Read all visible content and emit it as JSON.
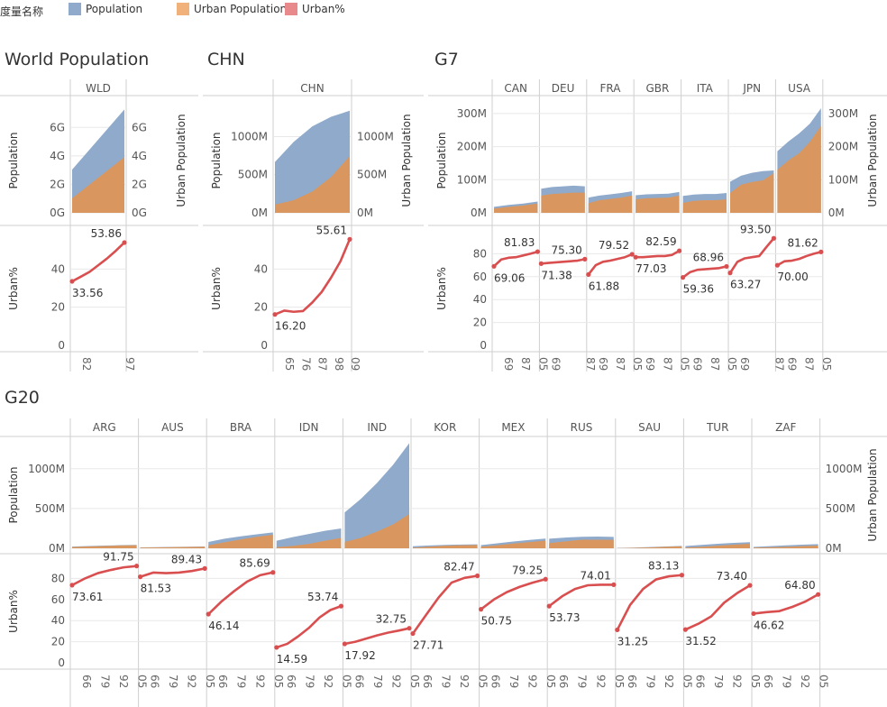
{
  "legend": {
    "title": "度量名称",
    "items": [
      {
        "label": "Population",
        "color": "#8faacb"
      },
      {
        "label": "Urban Population",
        "color": "#f0b27a"
      },
      {
        "label": "Urban%",
        "color": "#e8898c"
      }
    ]
  },
  "colors": {
    "population": "#8faacb",
    "urban_population": "#d9975f",
    "urban_line": "#d94f50",
    "grid": "#e8e8e8",
    "border": "#cfcfcf"
  },
  "chart_data": [
    {
      "section": "World Population",
      "type": "area+line",
      "axis_labels": {
        "left_top": "Population",
        "right_top": "Urban Population",
        "bottom": "Urban%"
      },
      "pop_ticks": [
        "0G",
        "2G",
        "4G",
        "6G"
      ],
      "pop_ticks_right": [
        "0G",
        "2G",
        "4G",
        "6G"
      ],
      "pop_ylim": [
        0,
        7.6
      ],
      "urban_ticks": [
        "0",
        "20",
        "40"
      ],
      "urban_ylim": [
        0,
        60
      ],
      "x_ticks": [
        "82",
        "97"
      ],
      "panels": [
        {
          "label": "WLD",
          "pop": [
            3.03,
            7.26
          ],
          "urban_pop": [
            1.02,
            3.91
          ],
          "urban": [
            33.56,
            36,
            38.5,
            42,
            45.5,
            49.5,
            53.86
          ],
          "start_label": "33.56",
          "end_label": "53.86"
        }
      ]
    },
    {
      "section": "CHN",
      "type": "area+line",
      "axis_labels": {
        "left_top": "Population",
        "right_top": "Urban Population",
        "bottom": "Urban%"
      },
      "pop_ticks": [
        "0M",
        "500M",
        "1000M"
      ],
      "pop_ticks_right": [
        "0M",
        "500M",
        "1000M"
      ],
      "pop_ylim": [
        0,
        1420
      ],
      "urban_ticks": [
        "0",
        "20",
        "40"
      ],
      "urban_ylim": [
        0,
        60
      ],
      "x_ticks": [
        "65",
        "76",
        "87",
        "98",
        "09"
      ],
      "panels": [
        {
          "label": "CHN",
          "pop": [
            667,
            930,
            1135,
            1260,
            1340
          ],
          "urban_pop": [
            108,
            165,
            280,
            470,
            745
          ],
          "urban": [
            16.2,
            18.2,
            17.6,
            18.0,
            22.5,
            28,
            35.5,
            44,
            55.61
          ],
          "start_label": "16.20",
          "end_label": "55.61"
        }
      ]
    },
    {
      "section": "G7",
      "type": "area+line",
      "axis_labels": {
        "left_top": "Population",
        "right_top": "Urban Population",
        "bottom": "Urban%"
      },
      "pop_ticks": [
        "0M",
        "100M",
        "200M",
        "300M"
      ],
      "pop_ticks_right": [
        "0M",
        "100M",
        "200M",
        "300M"
      ],
      "pop_ylim": [
        0,
        335
      ],
      "urban_ticks": [
        "0",
        "20",
        "40",
        "60",
        "80"
      ],
      "urban_ylim": [
        0,
        100
      ],
      "x_ticks": [
        "69",
        "87",
        "05"
      ],
      "panels": [
        {
          "label": "CAN",
          "x_ticks": [
            "69",
            "87",
            "05"
          ],
          "pop": [
            18,
            24,
            28,
            34
          ],
          "urban_pop": [
            13,
            18,
            22,
            28
          ],
          "urban": [
            69.06,
            75,
            76.5,
            77,
            78.5,
            80,
            81.83
          ],
          "start_label": "69.06",
          "end_label": "81.83"
        },
        {
          "label": "DEU",
          "x_ticks": [
            "69",
            "87"
          ],
          "pop": [
            73,
            78,
            80,
            82,
            80
          ],
          "urban_pop": [
            52,
            57,
            59,
            61,
            61
          ],
          "urban": [
            71.38,
            72,
            72.5,
            73,
            73.5,
            74,
            75.3
          ],
          "start_label": "71.38",
          "end_label": "75.30"
        },
        {
          "label": "FRA",
          "x_ticks": [
            "69",
            "87",
            "05"
          ],
          "pop": [
            46,
            52,
            56,
            60,
            65
          ],
          "urban_pop": [
            29,
            38,
            42,
            46,
            52
          ],
          "urban": [
            61.88,
            70,
            73,
            74,
            75.5,
            77,
            79.52
          ],
          "start_label": "61.88",
          "end_label": "79.52"
        },
        {
          "label": "GBR",
          "x_ticks": [
            "69",
            "87",
            "05"
          ],
          "pop": [
            53,
            56,
            57,
            58,
            63
          ],
          "urban_pop": [
            41,
            44,
            45,
            46,
            52
          ],
          "urban": [
            77.03,
            77,
            77.5,
            78,
            78,
            79,
            82.59
          ],
          "start_label": "77.03",
          "end_label": "82.59"
        },
        {
          "label": "ITA",
          "x_ticks": [
            "69",
            "87",
            "05"
          ],
          "pop": [
            51,
            55,
            57,
            57,
            60
          ],
          "urban_pop": [
            30,
            36,
            38,
            38,
            41
          ],
          "urban": [
            59.36,
            64,
            66,
            66.5,
            67,
            67.5,
            68.96
          ],
          "start_label": "59.36",
          "end_label": "68.96"
        },
        {
          "label": "JPN",
          "x_ticks": [
            "69",
            "87"
          ],
          "pop": [
            94,
            112,
            121,
            126,
            128
          ],
          "urban_pop": [
            60,
            85,
            93,
            98,
            120
          ],
          "urban": [
            63.27,
            73,
            76,
            77,
            78,
            86,
            93.5
          ],
          "start_label": "63.27",
          "end_label": "93.50"
        },
        {
          "label": "USA",
          "x_ticks": [
            "69",
            "87",
            "05"
          ],
          "pop": [
            186,
            215,
            240,
            270,
            316
          ],
          "urban_pop": [
            130,
            158,
            180,
            215,
            263
          ],
          "urban": [
            70.0,
            73.5,
            74,
            75.5,
            78,
            80,
            81.62
          ],
          "start_label": "70.00",
          "end_label": "81.62"
        }
      ]
    },
    {
      "section": "G20",
      "type": "area+line",
      "axis_labels": {
        "left_top": "Population",
        "right_top": "Urban Population",
        "bottom": "Urban%"
      },
      "pop_ticks": [
        "0M",
        "500M",
        "1000M"
      ],
      "pop_ticks_right": [
        "0M",
        "500M",
        "1000M"
      ],
      "pop_ylim": [
        0,
        1360
      ],
      "urban_ticks": [
        "0",
        "20",
        "40",
        "60",
        "80"
      ],
      "urban_ylim": [
        0,
        100
      ],
      "x_ticks": [
        "66",
        "79",
        "92",
        "05"
      ],
      "panels": [
        {
          "label": "ARG",
          "pop": [
            21,
            28,
            34,
            39,
            42
          ],
          "urban_pop": [
            15,
            23,
            29,
            35,
            38
          ],
          "urban": [
            73.61,
            80,
            85,
            88,
            90.5,
            91.75
          ],
          "start_label": "73.61",
          "end_label": "91.75"
        },
        {
          "label": "AUS",
          "pop": [
            11,
            14,
            17,
            20,
            23
          ],
          "urban_pop": [
            9,
            12,
            14,
            17,
            20
          ],
          "urban": [
            81.53,
            85.5,
            85,
            85.5,
            87,
            89.43
          ],
          "start_label": "81.53",
          "end_label": "89.43"
        },
        {
          "label": "BRA",
          "pop": [
            80,
            120,
            150,
            175,
            200
          ],
          "urban_pop": [
            37,
            75,
            110,
            145,
            170
          ],
          "urban": [
            46.14,
            58,
            68,
            77,
            83,
            85.69
          ],
          "start_label": "46.14",
          "end_label": "85.69"
        },
        {
          "label": "IDN",
          "pop": [
            95,
            140,
            180,
            220,
            250
          ],
          "urban_pop": [
            14,
            30,
            55,
            95,
            130
          ],
          "urban": [
            14.59,
            18,
            25,
            33,
            43,
            50,
            53.74
          ],
          "start_label": "14.59",
          "end_label": "53.74"
        },
        {
          "label": "IND",
          "pop": [
            450,
            620,
            820,
            1050,
            1320
          ],
          "urban_pop": [
            80,
            130,
            210,
            300,
            430
          ],
          "urban": [
            17.92,
            20,
            23,
            26,
            28.5,
            30.5,
            32.75
          ],
          "start_label": "17.92",
          "end_label": "32.75"
        },
        {
          "label": "KOR",
          "pop": [
            25,
            36,
            42,
            47,
            50
          ],
          "urban_pop": [
            7,
            20,
            32,
            38,
            41
          ],
          "urban": [
            27.71,
            45,
            62,
            76,
            80.5,
            82.47
          ],
          "start_label": "27.71",
          "end_label": "82.47"
        },
        {
          "label": "MEX",
          "pop": [
            40,
            62,
            85,
            105,
            122
          ],
          "urban_pop": [
            20,
            38,
            60,
            78,
            97
          ],
          "urban": [
            50.75,
            60,
            67,
            72,
            76,
            79.25
          ],
          "start_label": "50.75",
          "end_label": "79.25"
        },
        {
          "label": "RUS",
          "pop": [
            120,
            135,
            145,
            147,
            143
          ],
          "urban_pop": [
            65,
            87,
            107,
            108,
            106
          ],
          "urban": [
            53.73,
            63,
            70,
            73.5,
            74,
            74.01
          ],
          "start_label": "53.73",
          "end_label": "74.01"
        },
        {
          "label": "SAU",
          "pop": [
            4,
            9,
            16,
            23,
            30
          ],
          "urban_pop": [
            1.3,
            5.5,
            12,
            18.5,
            25
          ],
          "urban": [
            31.25,
            55,
            70,
            79,
            82,
            83.13
          ],
          "start_label": "31.25",
          "end_label": "83.13"
        },
        {
          "label": "TUR",
          "pop": [
            28,
            43,
            56,
            68,
            77
          ],
          "urban_pop": [
            9,
            19,
            33,
            46,
            56
          ],
          "urban": [
            31.52,
            37,
            44,
            57,
            66,
            73.4
          ],
          "start_label": "31.52",
          "end_label": "73.40"
        },
        {
          "label": "ZAF",
          "pop": [
            17,
            27,
            37,
            46,
            53
          ],
          "urban_pop": [
            8,
            13,
            19,
            27,
            34
          ],
          "urban": [
            46.62,
            48,
            49,
            53,
            58,
            64.8
          ],
          "start_label": "46.62",
          "end_label": "64.80"
        }
      ]
    }
  ]
}
